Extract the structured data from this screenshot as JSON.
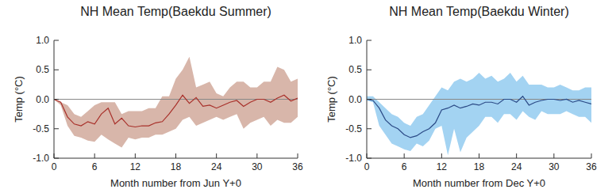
{
  "chart_data": [
    {
      "type": "line",
      "title": "NH Mean Temp(Baekdu Summer)",
      "xlabel": "Month number from Jun Y+0",
      "ylabel": "Temp (°C)",
      "color": "#d8b6aa",
      "x": [
        0,
        1,
        2,
        3,
        4,
        5,
        6,
        7,
        8,
        9,
        10,
        11,
        12,
        13,
        14,
        15,
        16,
        17,
        18,
        19,
        20,
        21,
        22,
        23,
        24,
        25,
        26,
        27,
        28,
        29,
        30,
        31,
        32,
        33,
        34,
        35,
        36
      ],
      "series": [
        {
          "color": "#a8302a",
          "values": [
            0,
            -0.05,
            -0.3,
            -0.42,
            -0.45,
            -0.38,
            -0.42,
            -0.25,
            -0.15,
            -0.42,
            -0.32,
            -0.45,
            -0.47,
            -0.45,
            -0.45,
            -0.4,
            -0.38,
            -0.25,
            -0.1,
            0.07,
            -0.07,
            0.03,
            -0.12,
            -0.1,
            -0.15,
            -0.1,
            -0.05,
            -0.02,
            -0.12,
            -0.05,
            0,
            0,
            -0.05,
            0.02,
            0.07,
            -0.03,
            0.02
          ],
          "upper": [
            0,
            -0.05,
            -0.1,
            -0.25,
            -0.3,
            -0.2,
            -0.1,
            -0.05,
            -0.05,
            -0.05,
            -0.25,
            -0.2,
            -0.2,
            -0.2,
            -0.15,
            -0.15,
            0.05,
            0.05,
            0.35,
            0.5,
            0.72,
            0.2,
            0.25,
            0.3,
            0.1,
            0.05,
            0.2,
            0.3,
            0.3,
            0.2,
            0.2,
            0.3,
            0.3,
            0.55,
            0.5,
            0.3,
            0.35
          ],
          "lower": [
            0,
            -0.1,
            -0.45,
            -0.62,
            -0.65,
            -0.7,
            -0.72,
            -0.6,
            -0.68,
            -0.75,
            -0.82,
            -0.65,
            -0.68,
            -0.65,
            -0.65,
            -0.6,
            -0.6,
            -0.55,
            -0.5,
            -0.35,
            -0.3,
            -0.45,
            -0.4,
            -0.35,
            -0.3,
            -0.35,
            -0.3,
            -0.25,
            -0.5,
            -0.4,
            -0.35,
            -0.3,
            -0.45,
            -0.35,
            -0.4,
            -0.4,
            -0.3
          ]
        }
      ],
      "xlim": [
        0,
        36
      ],
      "xticks": [
        0,
        6,
        12,
        18,
        24,
        30,
        36
      ],
      "ylim": [
        -1,
        1
      ],
      "yticks": [
        {
          "value": -1,
          "label": "-1.0"
        },
        -0.5,
        {
          "value": 0,
          "label": "0.0"
        },
        0.5,
        {
          "value": 1,
          "label": "1.0"
        }
      ]
    },
    {
      "type": "line",
      "title": "NH Mean Temp(Baekdu Winter)",
      "xlabel": "Month number from Dec Y+0",
      "ylabel": "Temp (°C)",
      "color": "#a3d3f2",
      "x": [
        0,
        1,
        2,
        3,
        4,
        5,
        6,
        7,
        8,
        9,
        10,
        11,
        12,
        13,
        14,
        15,
        16,
        17,
        18,
        19,
        20,
        21,
        22,
        23,
        24,
        25,
        26,
        27,
        28,
        29,
        30,
        31,
        32,
        33,
        34,
        35,
        36
      ],
      "series": [
        {
          "color": "#2b4a86",
          "values": [
            0,
            -0.02,
            -0.15,
            -0.35,
            -0.45,
            -0.5,
            -0.6,
            -0.65,
            -0.62,
            -0.55,
            -0.5,
            -0.4,
            -0.18,
            -0.15,
            -0.1,
            -0.15,
            -0.12,
            -0.08,
            -0.1,
            -0.05,
            -0.05,
            -0.08,
            0,
            0,
            -0.05,
            0.05,
            -0.1,
            -0.05,
            -0.02,
            0,
            0,
            -0.02,
            0,
            -0.05,
            -0.02,
            -0.05,
            -0.08
          ],
          "upper": [
            0.05,
            0.05,
            -0.05,
            -0.15,
            -0.25,
            -0.3,
            -0.4,
            -0.45,
            -0.3,
            -0.25,
            -0.1,
            0.05,
            0.2,
            0.15,
            0.3,
            0.35,
            0.3,
            0.35,
            0.45,
            0.35,
            0.4,
            0.3,
            0.35,
            0.45,
            0.3,
            0.4,
            0.25,
            0.25,
            0.25,
            0.2,
            0.2,
            0.25,
            0.2,
            0.15,
            0.15,
            0.2,
            0.2
          ],
          "lower": [
            -0.02,
            -0.05,
            -0.45,
            -0.6,
            -0.75,
            -0.8,
            -0.85,
            -0.88,
            -0.75,
            -0.8,
            -0.7,
            -0.5,
            -0.45,
            -0.95,
            -0.5,
            -0.9,
            -0.65,
            -0.55,
            -0.45,
            -0.3,
            -0.3,
            -0.4,
            -0.25,
            -0.25,
            -0.35,
            -0.2,
            -0.3,
            -0.35,
            -0.2,
            -0.25,
            -0.25,
            -0.25,
            -0.2,
            -0.25,
            -0.3,
            -0.3,
            -0.4
          ]
        }
      ],
      "xlim": [
        0,
        36
      ],
      "xticks": [
        0,
        6,
        12,
        18,
        24,
        30,
        36
      ],
      "ylim": [
        -1,
        1
      ],
      "yticks": [
        {
          "value": -1,
          "label": "-1.0"
        },
        -0.5,
        {
          "value": 0,
          "label": "0.0"
        },
        0.5,
        {
          "value": 1,
          "label": "1.0"
        }
      ]
    }
  ]
}
